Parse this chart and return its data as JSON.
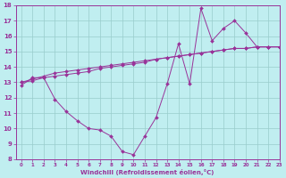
{
  "xlabel": "Windchill (Refroidissement éolien,°C)",
  "bg_color": "#c0eef0",
  "line_color": "#993399",
  "grid_color": "#99cccc",
  "ylim": [
    8,
    18
  ],
  "xlim": [
    -0.5,
    23
  ],
  "yticks": [
    8,
    9,
    10,
    11,
    12,
    13,
    14,
    15,
    16,
    17,
    18
  ],
  "xticks": [
    0,
    1,
    2,
    3,
    4,
    5,
    6,
    7,
    8,
    9,
    10,
    11,
    12,
    13,
    14,
    15,
    16,
    17,
    18,
    19,
    20,
    21,
    22,
    23
  ],
  "line1_x": [
    0,
    1,
    2,
    3,
    4,
    5,
    6,
    7,
    8,
    9,
    10,
    11,
    12,
    13,
    14,
    15,
    16,
    17,
    18,
    19,
    20,
    21,
    22,
    23
  ],
  "line1_y": [
    12.8,
    13.3,
    13.3,
    11.9,
    11.1,
    10.5,
    10.0,
    9.9,
    9.5,
    8.5,
    8.3,
    9.5,
    10.7,
    12.9,
    15.5,
    12.9,
    17.8,
    15.7,
    16.5,
    17.0,
    16.2,
    15.3,
    15.3,
    15.3
  ],
  "line2_x": [
    0,
    1,
    2,
    3,
    4,
    5,
    6,
    7,
    8,
    9,
    10,
    11,
    12,
    13,
    14,
    15,
    16,
    17,
    18,
    19,
    20,
    21,
    22,
    23
  ],
  "line2_y": [
    13.0,
    13.1,
    13.3,
    13.4,
    13.5,
    13.6,
    13.7,
    13.9,
    14.0,
    14.1,
    14.2,
    14.3,
    14.5,
    14.6,
    14.7,
    14.8,
    14.9,
    15.0,
    15.1,
    15.2,
    15.2,
    15.3,
    15.3,
    15.3
  ],
  "line3_x": [
    0,
    1,
    2,
    3,
    4,
    5,
    6,
    7,
    8,
    9,
    10,
    11,
    12,
    13,
    14,
    15,
    16,
    17,
    18,
    19,
    20,
    21,
    22,
    23
  ],
  "line3_y": [
    13.0,
    13.2,
    13.4,
    13.6,
    13.7,
    13.8,
    13.9,
    14.0,
    14.1,
    14.2,
    14.3,
    14.4,
    14.5,
    14.6,
    14.7,
    14.8,
    14.9,
    15.0,
    15.1,
    15.2,
    15.2,
    15.3,
    15.3,
    15.3
  ]
}
